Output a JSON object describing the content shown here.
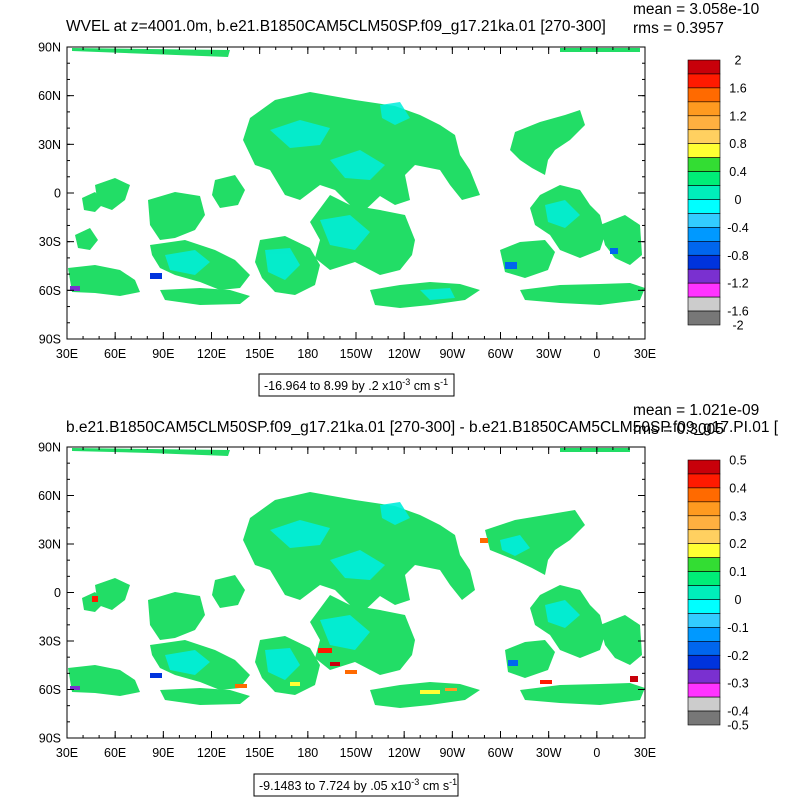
{
  "panels": [
    {
      "title": "WVEL at z=4001.0m, b.e21.B1850CAM5CLM50SP.f09_g17.21ka.01 [270-300]",
      "mean_text": "mean = 3.058e-10",
      "rms_text": "rms = 0.3957",
      "lat_labels": [
        "90N",
        "60N",
        "30N",
        "0",
        "30S",
        "60S",
        "90S"
      ],
      "lon_labels": [
        "30E",
        "60E",
        "90E",
        "120E",
        "150E",
        "180",
        "150W",
        "120W",
        "90W",
        "60W",
        "30W",
        "0",
        "30E"
      ],
      "range_text": "-16.964 to 8.99 by .2 x10",
      "range_exp": "-3",
      "range_units": " cm s",
      "range_units_exp": "-1",
      "colorbar": {
        "labels": [
          "2",
          "1.6",
          "1.2",
          "0.8",
          "0.4",
          "0",
          "-0.4",
          "-0.8",
          "-1.2",
          "-1.6",
          "-2"
        ],
        "colors": [
          "#c8000a",
          "#ff1a00",
          "#ff6a00",
          "#ff9a20",
          "#ffb040",
          "#ffd060",
          "#ffff33",
          "#33dd33",
          "#00ee77",
          "#00eebb",
          "#00ffff",
          "#33ccff",
          "#0099ff",
          "#0066ee",
          "#0033dd",
          "#7a30d0",
          "#ff33ff",
          "#cccccc",
          "#777777"
        ]
      }
    },
    {
      "title": "b.e21.B1850CAM5CLM50SP.f09_g17.21ka.01 [270-300] - b.e21.B1850CAM5CLM50SP.f09_g17.PI.01 [",
      "mean_text": "mean = 1.021e-09",
      "rms_text": "rms = 0.3005",
      "lat_labels": [
        "90N",
        "60N",
        "30N",
        "0",
        "30S",
        "60S",
        "90S"
      ],
      "lon_labels": [
        "30E",
        "60E",
        "90E",
        "120E",
        "150E",
        "180",
        "150W",
        "120W",
        "90W",
        "60W",
        "30W",
        "0",
        "30E"
      ],
      "range_text": "-9.1483 to 7.724 by .05 x10",
      "range_exp": "-3",
      "range_units": " cm s",
      "range_units_exp": "-1",
      "colorbar": {
        "labels": [
          "0.5",
          "0.4",
          "0.3",
          "0.2",
          "0.1",
          "0",
          "-0.1",
          "-0.2",
          "-0.3",
          "-0.4",
          "-0.5"
        ],
        "colors": [
          "#c8000a",
          "#ff1a00",
          "#ff6a00",
          "#ff9a20",
          "#ffb040",
          "#ffd060",
          "#ffff33",
          "#33dd33",
          "#00ee77",
          "#00eebb",
          "#00ffff",
          "#33ccff",
          "#0099ff",
          "#0066ee",
          "#0033dd",
          "#7a30d0",
          "#ff33ff",
          "#cccccc",
          "#777777"
        ]
      }
    }
  ]
}
